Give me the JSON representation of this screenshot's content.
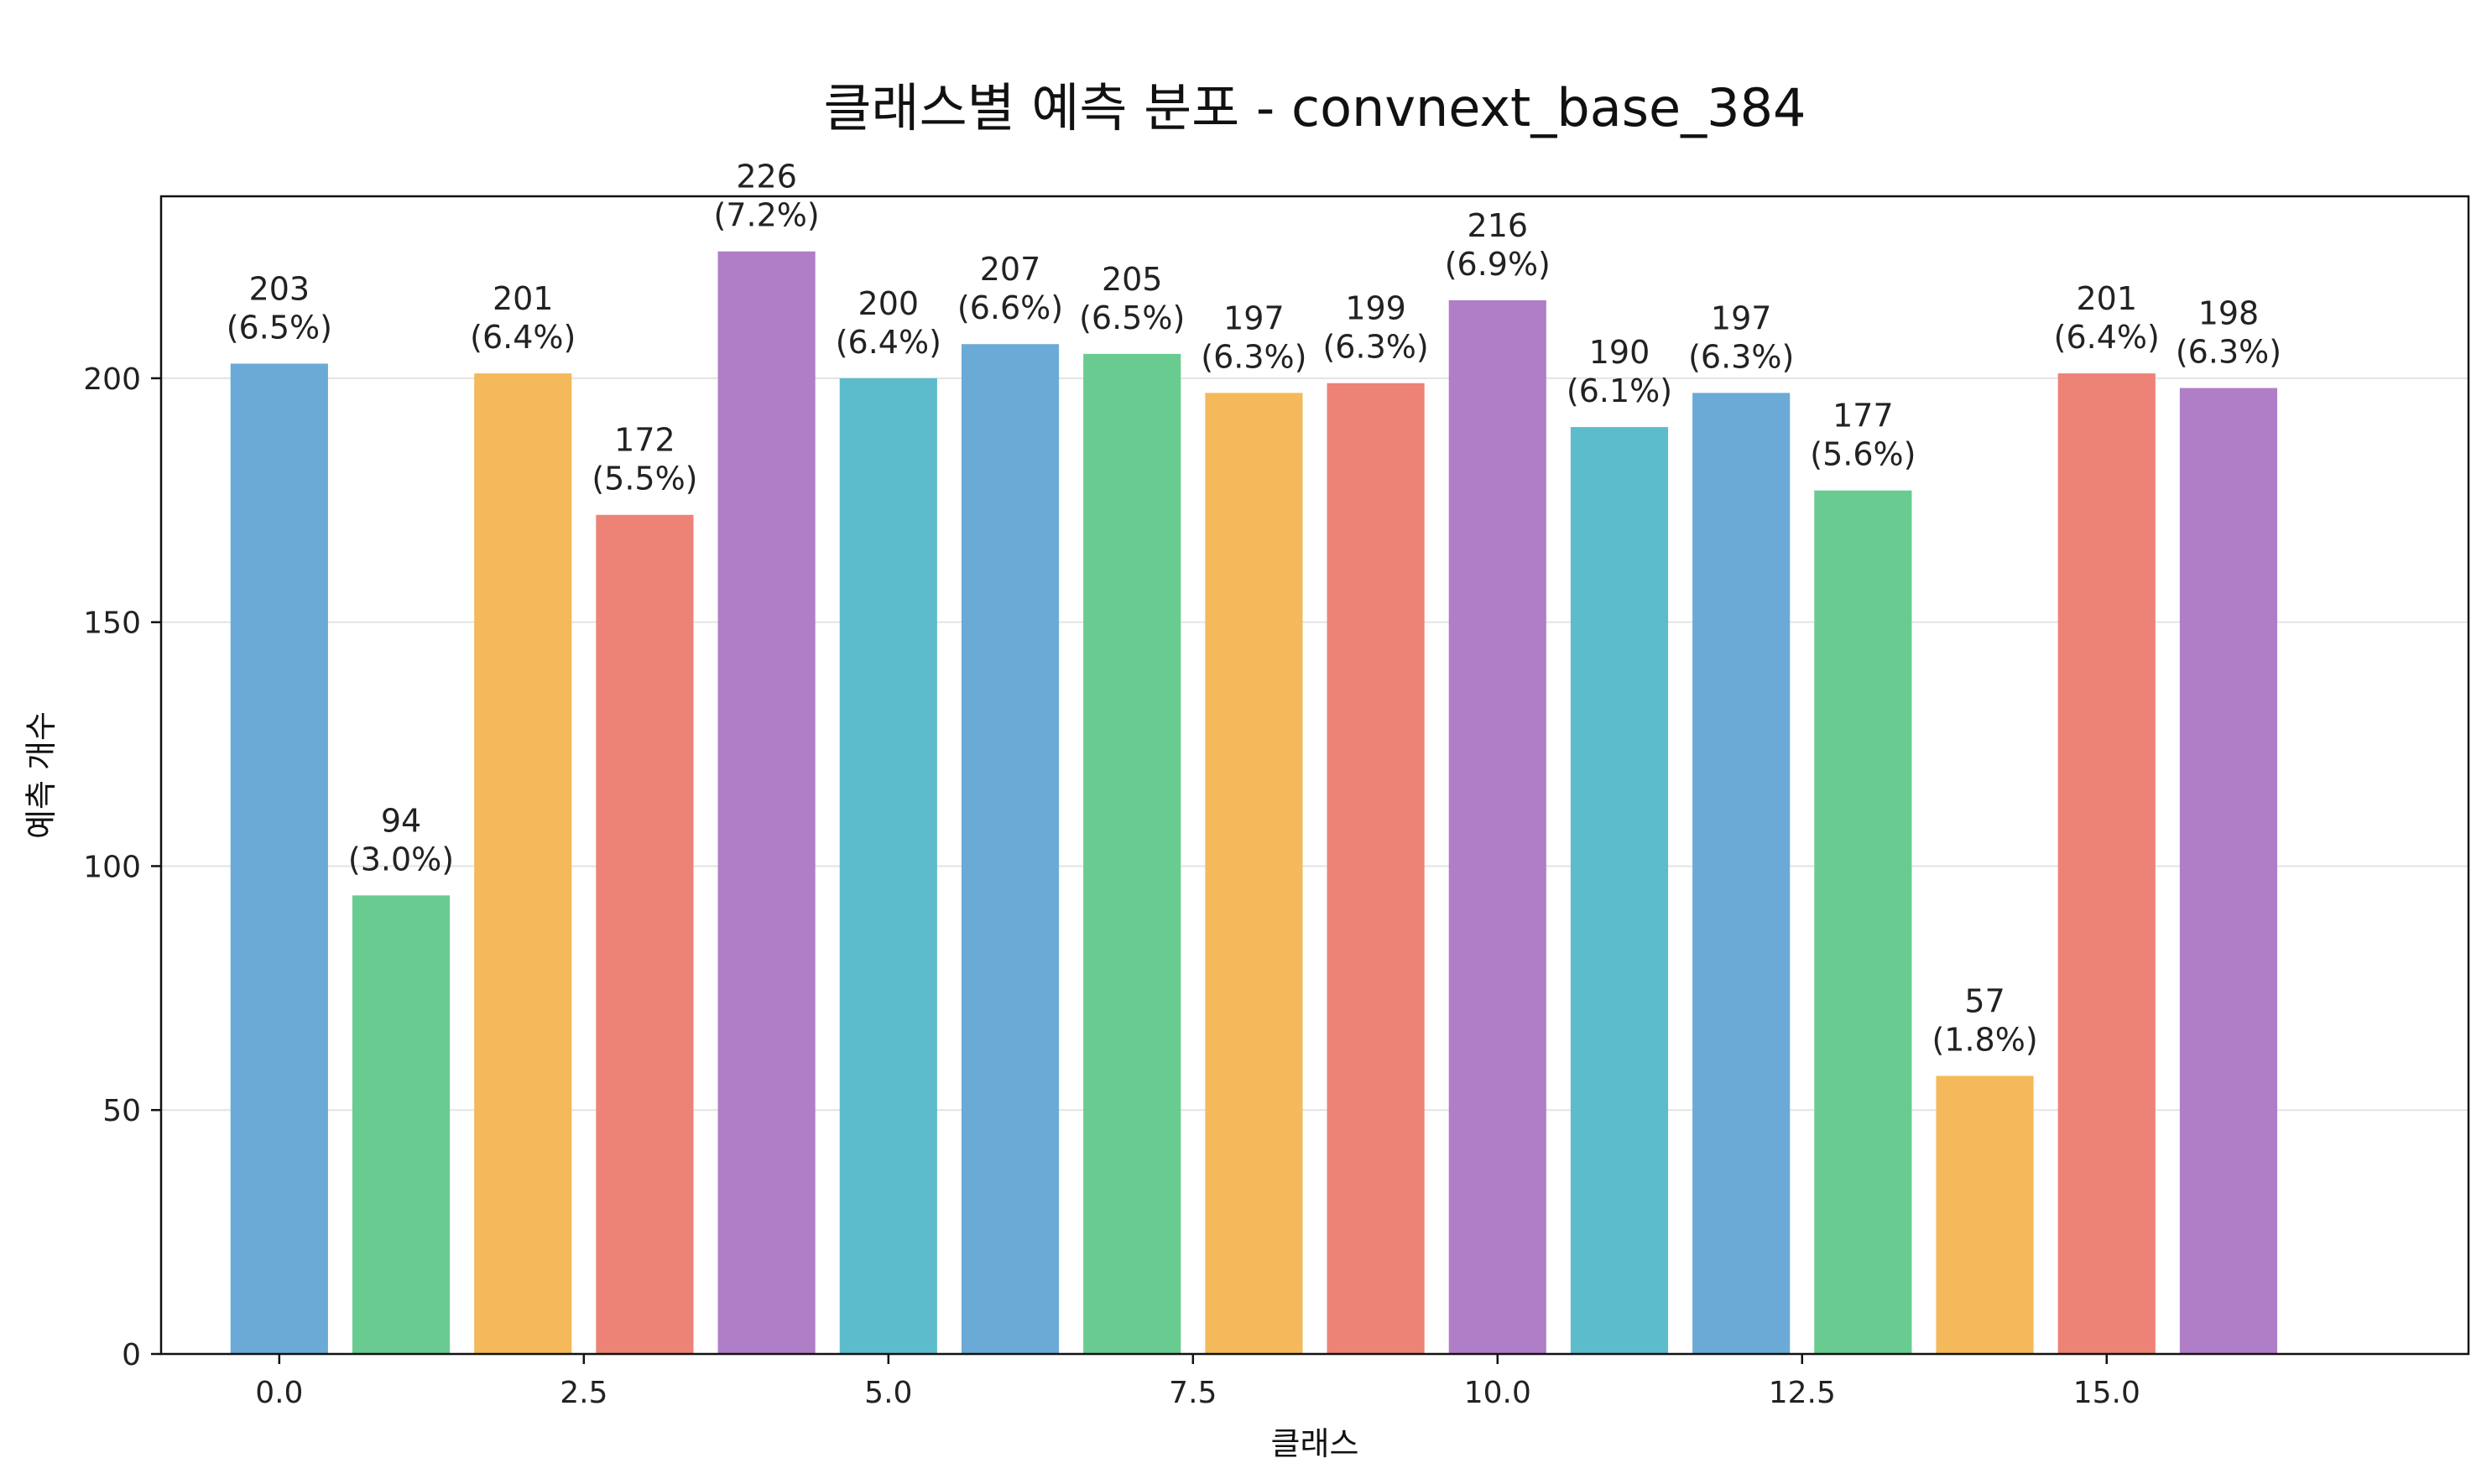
{
  "chart_data": {
    "type": "bar",
    "title": "클래스별 예측 분포 - convnext_base_384",
    "xlabel": "클래스",
    "ylabel": "예측 개수",
    "x": [
      0,
      1,
      2,
      3,
      4,
      5,
      6,
      7,
      8,
      9,
      10,
      11,
      12,
      13,
      14,
      15,
      16
    ],
    "values": [
      203,
      94,
      201,
      172,
      226,
      200,
      207,
      205,
      197,
      199,
      216,
      190,
      197,
      177,
      57,
      201,
      198
    ],
    "data_labels": [
      "(6.5%)",
      "(3.0%)",
      "(6.4%)",
      "(5.5%)",
      "(7.2%)",
      "(6.4%)",
      "(6.6%)",
      "(6.5%)",
      "(6.3%)",
      "(6.3%)",
      "(6.9%)",
      "(6.1%)",
      "(6.3%)",
      "(5.6%)",
      "(1.8%)",
      "(6.4%)",
      "(6.3%)"
    ],
    "bar_colors": [
      "#6baad6",
      "#69cb90",
      "#f4b95b",
      "#ed8276",
      "#b07ec6",
      "#5dbccb"
    ],
    "xlim": [
      -0.97,
      17.97
    ],
    "ylim": [
      0,
      237.3
    ],
    "xticks": [
      0.0,
      2.5,
      5.0,
      7.5,
      10.0,
      12.5,
      15.0
    ],
    "xtick_labels": [
      "0.0",
      "2.5",
      "5.0",
      "7.5",
      "10.0",
      "12.5",
      "15.0"
    ],
    "yticks": [
      0,
      50,
      100,
      150,
      200
    ],
    "ytick_labels": [
      "0",
      "50",
      "100",
      "150",
      "200"
    ],
    "grid": "y",
    "legend": "none"
  }
}
